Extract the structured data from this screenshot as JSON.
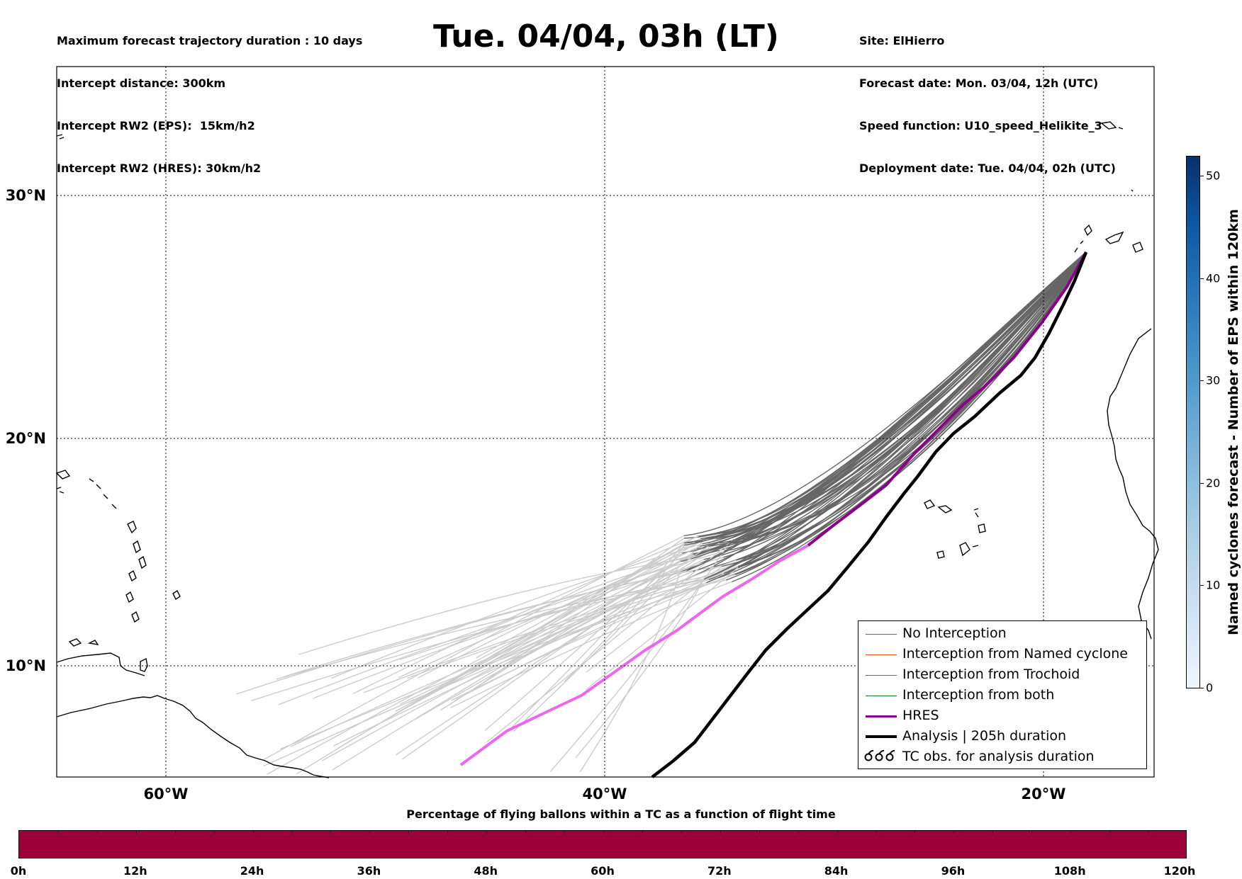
{
  "header_left": [
    "Maximum forecast trajectory duration : 10 days",
    "Intercept distance: 300km",
    "Intercept RW2 (EPS):  15km/h2",
    "Intercept RW2 (HRES): 30km/h2"
  ],
  "header_right": [
    "Site: ElHierro",
    "Forecast date: Mon. 03/04, 12h (UTC)",
    "Speed function: U10_speed_Helikite_3",
    "Deployment date: Tue. 04/04, 02h (UTC)"
  ],
  "title": "Tue. 04/04, 03h (LT)",
  "map": {
    "lat_labels": [
      "30°N",
      "20°N",
      "10°N"
    ],
    "lon_labels": [
      "60°W",
      "40°W",
      "20°W"
    ],
    "colors": {
      "no_interception_early": "#cccccc",
      "no_interception_late": "#666666",
      "hres_early": "#ee66ee",
      "hres_late": "#8b008b",
      "analysis": "#000000",
      "coast": "#000000"
    }
  },
  "legend": {
    "items": [
      {
        "label": "No Interception",
        "color": "#666666"
      },
      {
        "label": "Interception from Named cyclone",
        "color": "#e8501d"
      },
      {
        "label": "Interception from Trochoid",
        "color": "#7a7a1e"
      },
      {
        "label": "Interception from both",
        "color": "#1e7a1e"
      },
      {
        "label": "HRES",
        "color": "#8b008b"
      },
      {
        "label": "Analysis | 205h duration",
        "color": "#000000"
      },
      {
        "label": "TC obs. for analysis duration",
        "symbol": "ර ර ර"
      }
    ]
  },
  "colorbar": {
    "title": "Named cyclones forecast - Number of EPS within 120km",
    "ticks": [
      "0",
      "10",
      "20",
      "30",
      "40",
      "50"
    ]
  },
  "percentage_bar": {
    "title": "Percentage of flying ballons within a TC as a function of flight time",
    "color": "#9e003a",
    "ticks": [
      "0h",
      "12h",
      "24h",
      "36h",
      "48h",
      "60h",
      "72h",
      "84h",
      "96h",
      "108h",
      "120h"
    ]
  }
}
